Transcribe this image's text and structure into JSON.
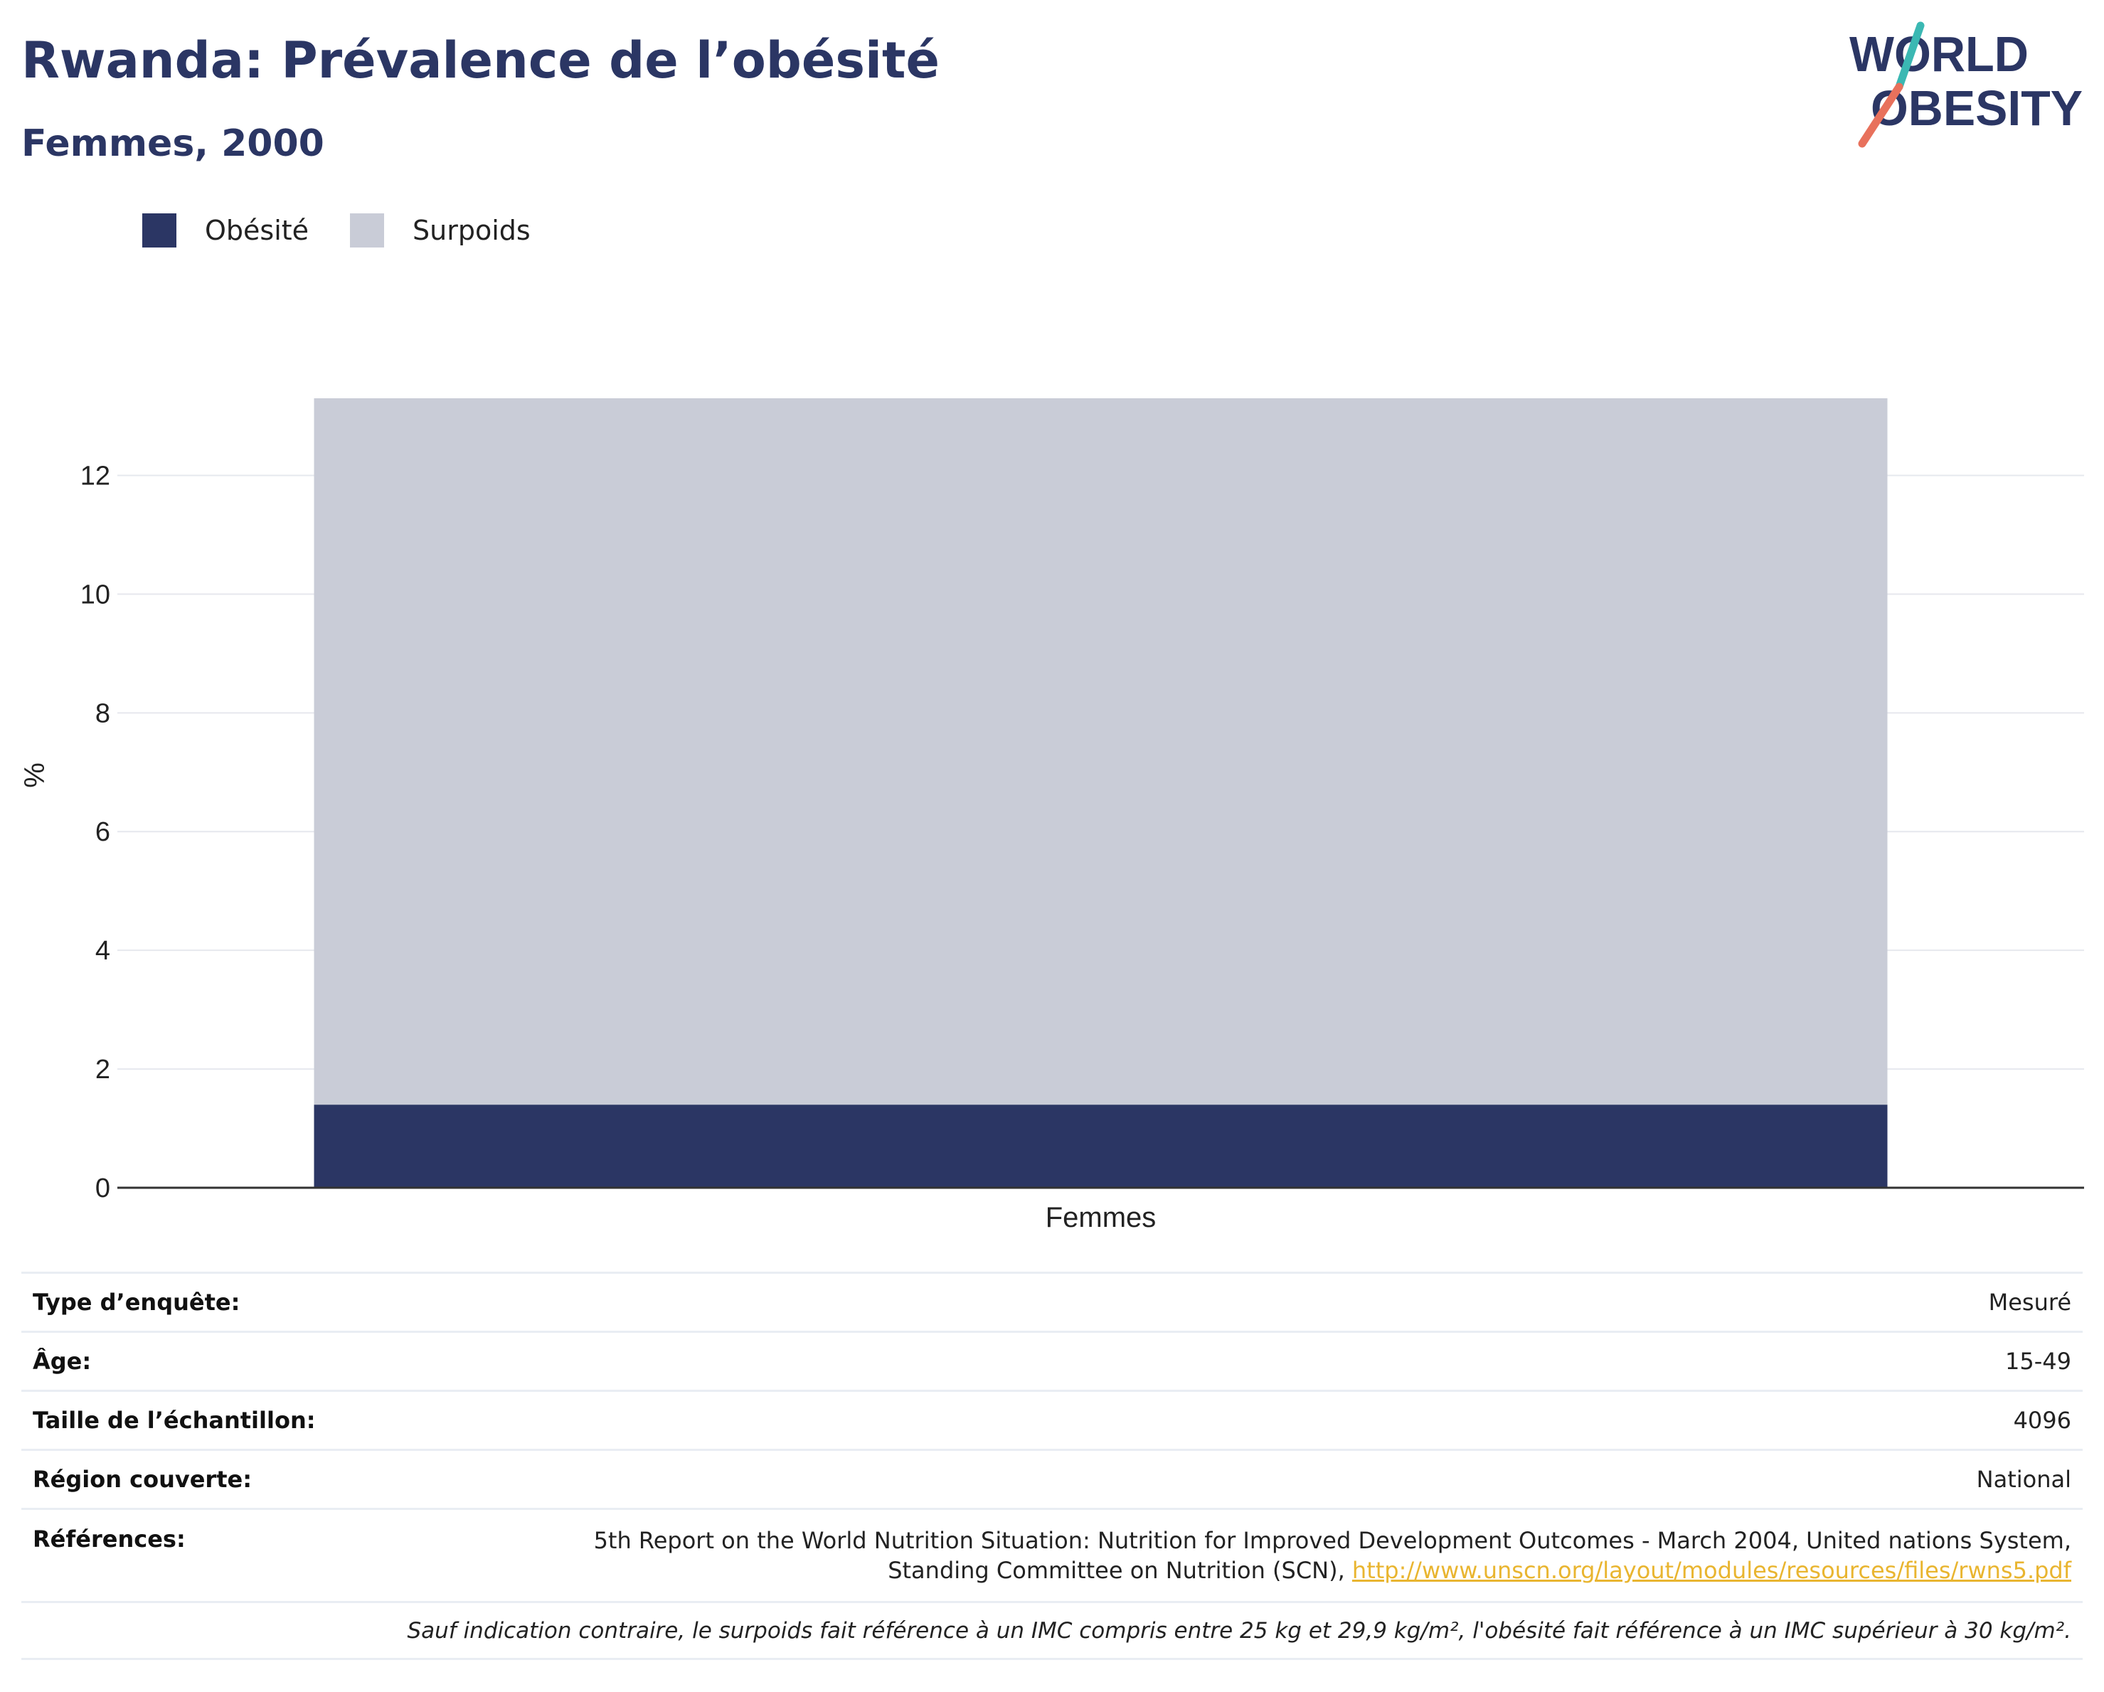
{
  "header": {
    "title": "Rwanda: Prévalence de l’obésité",
    "subtitle": "Femmes, 2000"
  },
  "logo": {
    "line1": "WORLD",
    "line2": "OBESITY",
    "icon": "world-obesity-logo"
  },
  "colors": {
    "obesity": "#2b3664",
    "overweight": "#c9ccd7",
    "accent_teal": "#3bb8b3",
    "accent_coral": "#e8715c",
    "link": "#e9b530"
  },
  "legend": [
    {
      "label": "Obésité",
      "color": "#2b3664"
    },
    {
      "label": "Surpoids",
      "color": "#c9ccd7"
    }
  ],
  "chart_data": {
    "type": "bar",
    "stacked": true,
    "categories": [
      "Femmes"
    ],
    "series": [
      {
        "name": "Obésité",
        "values": [
          1.4
        ],
        "color": "#2b3664"
      },
      {
        "name": "Surpoids",
        "values": [
          11.9
        ],
        "color": "#c9ccd7"
      }
    ],
    "ylabel": "%",
    "xlabel": "",
    "ylim": [
      0,
      13.3
    ],
    "yticks": [
      0,
      2,
      4,
      6,
      8,
      10,
      12
    ],
    "grid": true,
    "legend_position": "top-left"
  },
  "info": {
    "survey_type": {
      "label": "Type d’enquête:",
      "value": "Mesuré"
    },
    "age": {
      "label": "Âge:",
      "value": "15-49"
    },
    "sample_size": {
      "label": "Taille de l’échantillon:",
      "value": "4096"
    },
    "region": {
      "label": "Région couverte:",
      "value": "National"
    },
    "references": {
      "label": "Références:",
      "text_line1": "5th Report on the World Nutrition Situation: Nutrition for Improved Development Outcomes - March 2004, United nations System,",
      "text_line2": "Standing Committee on Nutrition (SCN),",
      "link": "http://www.unscn.org/layout/modules/resources/files/rwns5.pdf"
    },
    "note": "Sauf indication contraire, le surpoids fait référence à un IMC compris entre 25 kg et 29,9 kg/m², l'obésité fait référence à un IMC supérieur à 30 kg/m²."
  }
}
